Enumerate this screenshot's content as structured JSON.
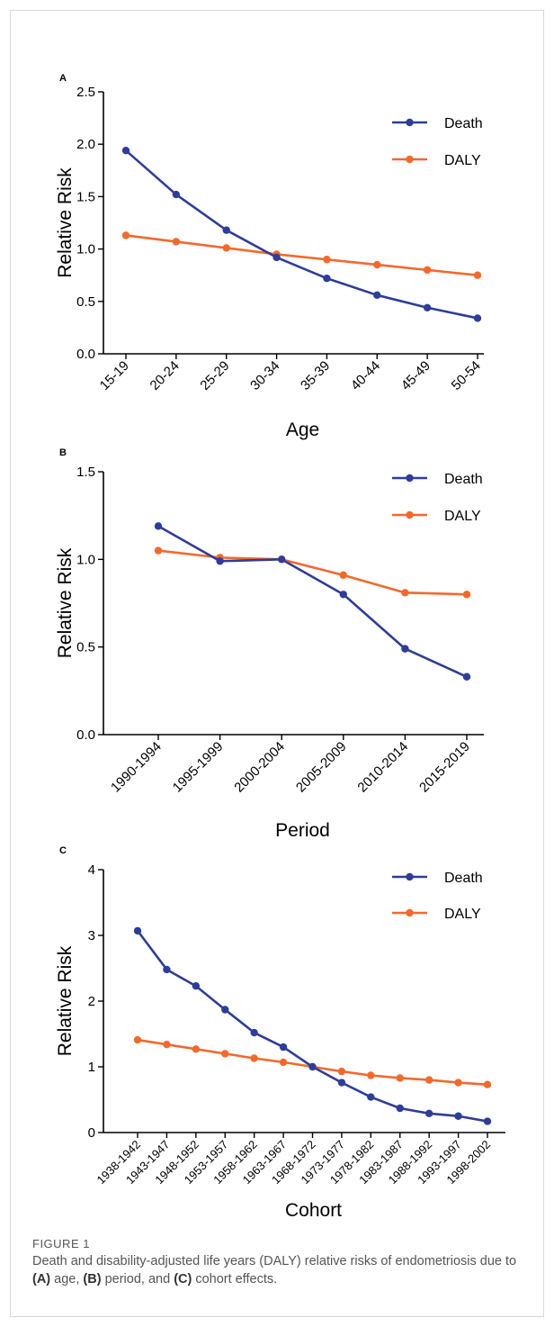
{
  "chart_data": [
    {
      "panel": "A",
      "type": "line",
      "xlabel": "Age",
      "ylabel": "Relative Risk",
      "ylim": [
        0,
        2.5
      ],
      "yticks": [
        "0.0",
        "0.5",
        "1.0",
        "1.5",
        "2.0",
        "2.5"
      ],
      "categories": [
        "15-19",
        "20-24",
        "25-29",
        "30-34",
        "35-39",
        "40-44",
        "45-49",
        "50-54"
      ],
      "series": [
        {
          "name": "Death",
          "color": "#2e3d98",
          "values": [
            1.94,
            1.52,
            1.18,
            0.92,
            0.72,
            0.56,
            0.44,
            0.34
          ]
        },
        {
          "name": "DALY",
          "color": "#f2692e",
          "values": [
            1.13,
            1.07,
            1.01,
            0.95,
            0.9,
            0.85,
            0.8,
            0.75
          ]
        }
      ],
      "legend": "top-right",
      "grid": false
    },
    {
      "panel": "B",
      "type": "line",
      "xlabel": "Period",
      "ylabel": "Relative Risk",
      "ylim": [
        0,
        1.5
      ],
      "yticks": [
        "0.0",
        "0.5",
        "1.0",
        "1.5"
      ],
      "categories": [
        "1990-1994",
        "1995-1999",
        "2000-2004",
        "2005-2009",
        "2010-2014",
        "2015-2019"
      ],
      "series": [
        {
          "name": "Death",
          "color": "#2e3d98",
          "values": [
            1.19,
            0.99,
            1.0,
            0.8,
            0.49,
            0.33
          ]
        },
        {
          "name": "DALY",
          "color": "#f2692e",
          "values": [
            1.05,
            1.01,
            1.0,
            0.91,
            0.81,
            0.8
          ]
        }
      ],
      "legend": "top-right",
      "grid": false
    },
    {
      "panel": "C",
      "type": "line",
      "xlabel": "Cohort",
      "ylabel": "Relative Risk",
      "ylim": [
        0,
        4
      ],
      "yticks": [
        "0",
        "1",
        "2",
        "3",
        "4"
      ],
      "categories": [
        "1938-1942",
        "1943-1947",
        "1948-1952",
        "1953-1957",
        "1958-1962",
        "1963-1967",
        "1968-1972",
        "1973-1977",
        "1978-1982",
        "1983-1987",
        "1988-1992",
        "1993-1997",
        "1998-2002"
      ],
      "series": [
        {
          "name": "Death",
          "color": "#2e3d98",
          "values": [
            3.07,
            2.48,
            2.23,
            1.87,
            1.52,
            1.3,
            1.0,
            0.76,
            0.54,
            0.37,
            0.29,
            0.25,
            0.17
          ]
        },
        {
          "name": "DALY",
          "color": "#f2692e",
          "values": [
            1.41,
            1.34,
            1.27,
            1.2,
            1.13,
            1.07,
            1.0,
            0.93,
            0.87,
            0.83,
            0.8,
            0.76,
            0.73
          ]
        }
      ],
      "legend": "top-right",
      "grid": false
    }
  ],
  "caption": {
    "label": "FIGURE 1",
    "text_1": "Death and disability-adjusted life years (DALY) relative risks of endometriosis due to ",
    "ref_a": "(A)",
    "text_2": " age, ",
    "ref_b": "(B)",
    "text_3": " period, and ",
    "ref_c": "(C)",
    "text_4": " cohort effects."
  }
}
